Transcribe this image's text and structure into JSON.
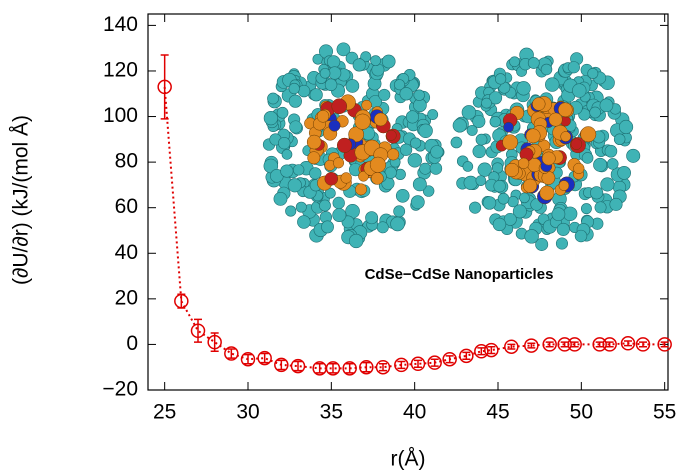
{
  "chart_data": {
    "type": "scatter",
    "annotation": "CdSe−CdSe Nanoparticles",
    "xlabel": "r(Å)",
    "ylabel": "(∂U/∂r) (kJ/(mol Å)",
    "xlim": [
      24,
      55.2
    ],
    "ylim": [
      -20,
      145
    ],
    "xticks": [
      25,
      30,
      35,
      40,
      45,
      50,
      55
    ],
    "yticks": [
      {
        "value": -20,
        "label": "−20"
      },
      0,
      20,
      40,
      60,
      80,
      100,
      120,
      140
    ],
    "series": [
      {
        "color": "#e00000",
        "x": [
          25,
          26,
          27,
          28,
          29,
          30,
          31,
          32,
          33,
          34.3,
          35.1,
          36.1,
          37.1,
          38.1,
          39.2,
          40.2,
          41.2,
          42.1,
          43.1,
          44,
          44.6,
          45.8,
          47,
          48.1,
          49,
          49.6,
          51.1,
          51.7,
          52.8,
          53.7,
          55
        ],
        "values": [
          113,
          19,
          6,
          1,
          -4,
          -6.5,
          -6,
          -9,
          -9.5,
          -10.5,
          -10.5,
          -10.5,
          -10,
          -10,
          -9,
          -8.5,
          -8,
          -6.5,
          -5,
          -3,
          -2.5,
          -1,
          -0.5,
          0,
          0,
          0,
          0,
          0,
          0.5,
          0,
          0
        ],
        "errors": [
          14,
          3,
          5,
          4,
          2,
          2,
          2,
          2,
          2,
          2,
          2,
          2,
          2,
          1.5,
          1.5,
          1.5,
          1.5,
          1.5,
          1.5,
          1.5,
          1.5,
          1,
          1,
          1,
          1,
          1,
          1,
          1,
          1,
          1,
          1
        ]
      }
    ]
  }
}
